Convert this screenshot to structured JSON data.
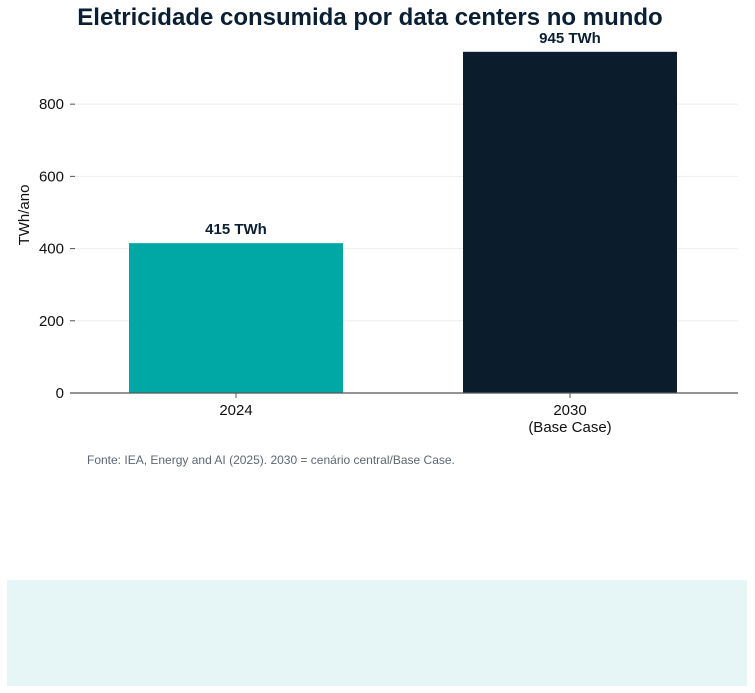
{
  "chart_data": {
    "type": "bar",
    "title": "Eletricidade consumida por data centers no mundo",
    "ylabel": "TWh/ano",
    "xlabel": "",
    "categories": [
      [
        "2024"
      ],
      [
        "2030",
        "(Base Case)"
      ]
    ],
    "values": [
      415,
      945
    ],
    "data_labels": [
      "415 TWh",
      "945 TWh"
    ],
    "bar_colors": [
      "#00a8a5",
      "#0b1c2d"
    ],
    "ylim": [
      0,
      950
    ],
    "yticks": [
      0,
      200,
      400,
      600,
      800
    ],
    "grid": true,
    "legend": "none"
  },
  "source_note": "Fonte: IEA, Energy and AI (2025). 2030 = cenário central/Base Case.",
  "colors": {
    "title": "#0b1f33",
    "axis": "#555555",
    "grid": "#eeeeee",
    "footer_panel": "#e6f5f5"
  }
}
